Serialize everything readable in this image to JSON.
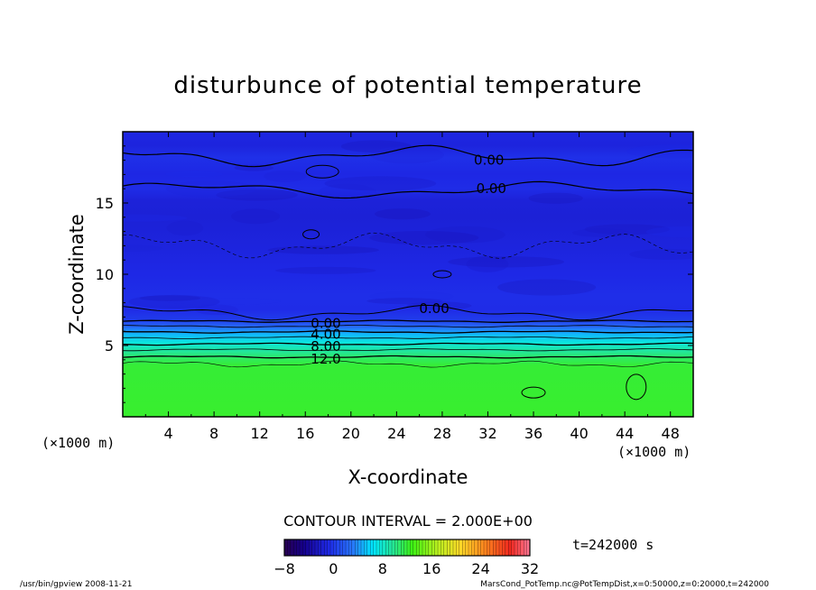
{
  "chart_data": {
    "type": "contour",
    "title": "disturbunce of potential temperature",
    "xlabel": "X-coordinate",
    "ylabel": "Z-coordinate",
    "x_unit": "(×1000 m)",
    "z_unit": "(×1000 m)",
    "xlim": [
      0,
      50
    ],
    "zlim": [
      0,
      20
    ],
    "x_ticks": [
      4,
      8,
      12,
      16,
      20,
      24,
      28,
      32,
      36,
      40,
      44,
      48
    ],
    "z_ticks": [
      5,
      10,
      15
    ],
    "contour_interval_text": "CONTOUR INTERVAL = 2.000E+00",
    "contour_levels": [
      {
        "value": 0,
        "label": "0.00",
        "z": 6.7
      },
      {
        "value": 2,
        "label": "",
        "z": 6.35
      },
      {
        "value": 4,
        "label": "4.00",
        "z": 5.95
      },
      {
        "value": 6,
        "label": "",
        "z": 5.55
      },
      {
        "value": 8,
        "label": "8.00",
        "z": 5.1
      },
      {
        "value": 10,
        "label": "",
        "z": 4.7
      },
      {
        "value": 12,
        "label": "12.0",
        "z": 4.2
      }
    ],
    "upper_labels": [
      {
        "label": "0.00",
        "x": 32.1,
        "z": 18.0
      },
      {
        "label": "0.00",
        "x": 32.3,
        "z": 16.0
      },
      {
        "label": "0.00",
        "x": 27.3,
        "z": 7.6
      }
    ],
    "field_profile": [
      {
        "z": 0,
        "value": 12.2
      },
      {
        "z": 3.6,
        "value": 12.0
      },
      {
        "z": 4.1,
        "value": 11.0
      },
      {
        "z": 4.6,
        "value": 9.5
      },
      {
        "z": 5.2,
        "value": 7.5
      },
      {
        "z": 5.8,
        "value": 5.0
      },
      {
        "z": 6.3,
        "value": 2.5
      },
      {
        "z": 6.8,
        "value": 0.2
      },
      {
        "z": 7.5,
        "value": -0.6
      },
      {
        "z": 8.5,
        "value": -0.5
      },
      {
        "z": 10,
        "value": -0.8
      },
      {
        "z": 12,
        "value": -1.2
      },
      {
        "z": 14,
        "value": -1.5
      },
      {
        "z": 15.2,
        "value": -1.4
      },
      {
        "z": 16,
        "value": -0.6
      },
      {
        "z": 17,
        "value": -0.9
      },
      {
        "z": 18.2,
        "value": -0.4
      },
      {
        "z": 19,
        "value": -1.2
      },
      {
        "z": 20,
        "value": -1.0
      }
    ],
    "colorbar": {
      "min": -8,
      "max": 32,
      "tick_values": [
        -8,
        0,
        8,
        16,
        24,
        32
      ],
      "tick_labels": [
        "−8",
        "0",
        "8",
        "16",
        "24",
        "32"
      ]
    },
    "time_label": "t=242000 s",
    "footer_left": "/usr/bin/gpview   2008-11-21",
    "footer_right": "MarsCond_PotTemp.nc@PotTempDist,x=0:50000,z=0:20000,t=242000"
  }
}
